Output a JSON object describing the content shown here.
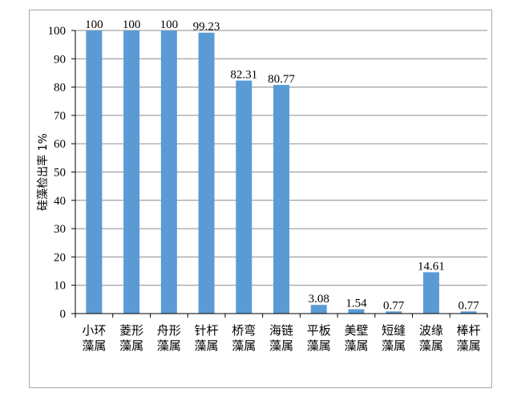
{
  "chart_data": {
    "type": "bar",
    "categories": [
      [
        "小环",
        "藻属"
      ],
      [
        "菱形",
        "藻属"
      ],
      [
        "舟形",
        "藻属"
      ],
      [
        "针杆",
        "藻属"
      ],
      [
        "桥弯",
        "藻属"
      ],
      [
        "海链",
        "藻属"
      ],
      [
        "平板",
        "藻属"
      ],
      [
        "美壁",
        "藻属"
      ],
      [
        "短缝",
        "藻属"
      ],
      [
        "波缘",
        "藻属"
      ],
      [
        "棒杆",
        "藻属"
      ]
    ],
    "values": [
      100,
      100,
      100,
      99.23,
      82.31,
      80.77,
      3.08,
      1.54,
      0.77,
      14.61,
      0.77
    ],
    "data_labels": [
      "100",
      "100",
      "100",
      "99.23",
      "82.31",
      "80.77",
      "3.08",
      "1.54",
      "0.77",
      "14.61",
      "0.77"
    ],
    "ylabel": "硅藻检出率 1%",
    "xlabel": "",
    "ylim": [
      0,
      100
    ],
    "yticks": [
      0,
      10,
      20,
      30,
      40,
      50,
      60,
      70,
      80,
      90,
      100
    ],
    "grid": true,
    "legend": "none",
    "colors": {
      "bar": "#5b9bd5",
      "grid": "#8c8c8c",
      "axis": "#000000"
    }
  }
}
